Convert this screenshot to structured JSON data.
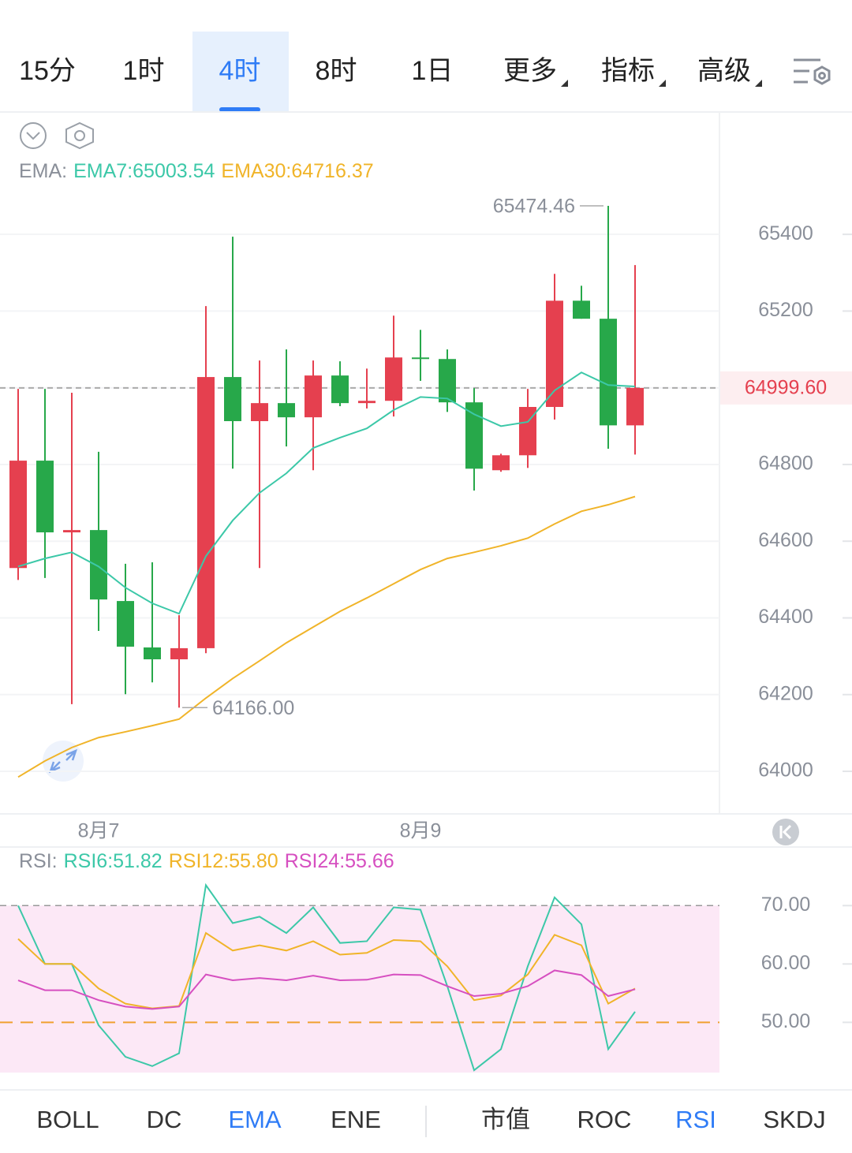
{
  "period_tabs": [
    "15分",
    "1时",
    "4时",
    "8时",
    "1日",
    "更多",
    "指标",
    "高级"
  ],
  "active_period": 2,
  "main_indicators": [
    "BOLL",
    "DC",
    "EMA",
    "ENE"
  ],
  "active_main": 2,
  "sub_indicators": [
    "市值",
    "ROC",
    "RSI",
    "SKDJ"
  ],
  "active_sub": 2,
  "chart_data": [
    {
      "type": "candlestick",
      "legend_prefix": "EMA:",
      "categories": [
        null,
        null,
        null,
        "8月7",
        null,
        null,
        null,
        null,
        null,
        null,
        null,
        null,
        null,
        null,
        null,
        "8月9",
        null,
        null,
        null,
        null,
        null,
        null,
        null,
        null
      ],
      "open": [
        64530,
        64810,
        64623,
        64629,
        64444,
        64323,
        64292,
        64321,
        65028,
        64913,
        64960,
        64923,
        65032,
        64960,
        64966,
        65079,
        65075,
        64962,
        64785,
        64824,
        64950,
        65227,
        65180,
        64902
      ],
      "high": [
        64997,
        64997,
        64987,
        64833,
        64541,
        64545,
        64407,
        65213,
        65394,
        65071,
        65100,
        65071,
        65069,
        65050,
        65188,
        65151,
        65100,
        64999,
        64828,
        64997,
        65297,
        65266,
        65474.46,
        65320
      ],
      "low": [
        64499,
        64504,
        64175,
        64366,
        64201,
        64232,
        64166,
        64308,
        64789,
        64530,
        64847,
        64785,
        64952,
        64946,
        64925,
        65018,
        64937,
        64732,
        64781,
        64791,
        64917,
        65180,
        64841,
        64826
      ],
      "close": [
        64810,
        64623,
        64629,
        64448,
        64325,
        64292,
        64321,
        65028,
        64913,
        64960,
        64923,
        65032,
        64960,
        64966,
        65079,
        65075,
        64962,
        64789,
        64824,
        64950,
        65227,
        65180,
        64902,
        64999.6
      ],
      "up_color": "#e5404f",
      "down_color": "#27a84a",
      "series": [
        {
          "name": "EMA7",
          "legend_label": "EMA7:65003.54",
          "color": "#3cc8a8",
          "values": [
            64534,
            64555,
            64571,
            64534,
            64479,
            64438,
            64411,
            64561,
            64654,
            64726,
            64777,
            64843,
            64870,
            64894,
            64942,
            64976,
            64972,
            64931,
            64900,
            64911,
            64993,
            65040,
            65007,
            65003.54
          ]
        },
        {
          "name": "EMA30",
          "legend_label": "EMA30:64716.37",
          "color": "#f0b429",
          "values": [
            63985,
            64027,
            64062,
            64088,
            64103,
            64119,
            64136,
            64191,
            64242,
            64288,
            64335,
            64376,
            64417,
            64452,
            64489,
            64526,
            64555,
            64571,
            64588,
            64608,
            64645,
            64678,
            64695,
            64716.37
          ]
        }
      ],
      "high_marker": 65474.46,
      "low_marker": {
        "value": 64166,
        "label": "64166.00"
      },
      "last_price": {
        "value": 64999.6,
        "label": "64999.60"
      },
      "ylim": [
        63889,
        65717
      ],
      "yticks": [
        64000,
        64200,
        64400,
        64600,
        64800,
        65000,
        65200,
        65400
      ],
      "yticks_hidden": [
        65000
      ],
      "grid": true
    },
    {
      "type": "line",
      "legend_prefix": "RSI:",
      "series": [
        {
          "name": "RSI6",
          "legend_label": "RSI6:51.82",
          "color": "#3cc8a8",
          "values": [
            70,
            60,
            60,
            49.5,
            44.1,
            42.5,
            44.7,
            73.5,
            67,
            68.1,
            65.3,
            69.7,
            63.6,
            63.9,
            69.7,
            69.3,
            56.2,
            41.8,
            45.4,
            59.6,
            71.4,
            66.8,
            45.4,
            51.82
          ]
        },
        {
          "name": "RSI12",
          "legend_label": "RSI12:55.80",
          "color": "#f0b429",
          "values": [
            64.3,
            60,
            60,
            55.8,
            53.2,
            52.4,
            52.8,
            65.3,
            62.3,
            63.2,
            62.3,
            63.9,
            61.6,
            61.9,
            64.1,
            63.9,
            59.6,
            53.8,
            54.6,
            58.2,
            65,
            63.2,
            53.2,
            55.8
          ]
        },
        {
          "name": "RSI24",
          "legend_label": "RSI24:55.66",
          "color": "#d64fc0",
          "values": [
            57.2,
            55.5,
            55.5,
            53.8,
            52.7,
            52.3,
            52.7,
            58.2,
            57.2,
            57.6,
            57.2,
            58,
            57.2,
            57.3,
            58.2,
            58.1,
            56.2,
            54.5,
            54.9,
            56.2,
            58.9,
            58.1,
            54.5,
            55.66
          ]
        }
      ],
      "upper_line": 70,
      "lower_line": 50,
      "ylim": [
        41.4,
        79.9
      ],
      "yticks": [
        {
          "value": 50,
          "label": "50.00"
        },
        {
          "value": 60,
          "label": "60.00"
        },
        {
          "value": 70,
          "label": "70.00"
        }
      ]
    }
  ]
}
